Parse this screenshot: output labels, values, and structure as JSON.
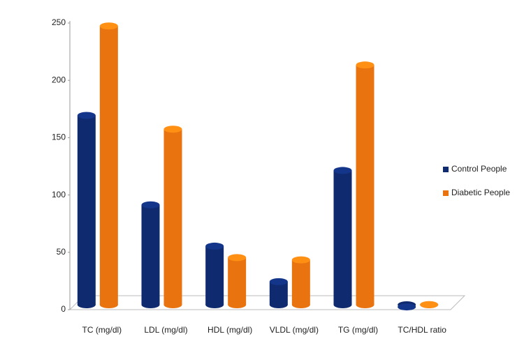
{
  "chart_data": {
    "type": "bar",
    "categories": [
      "TC (mg/dl)",
      "LDL (mg/dl)",
      "HDL (mg/dl)",
      "VLDL (mg/dl)",
      "TG (mg/dl)",
      "TC/HDL ratio"
    ],
    "series": [
      {
        "name": "Control People",
        "color": "#0f2a6e",
        "values": [
          170,
          92,
          56,
          25,
          122,
          3
        ]
      },
      {
        "name": "Diabetic People",
        "color": "#e8730f",
        "values": [
          248,
          158,
          46,
          44,
          214,
          5
        ]
      }
    ],
    "ylim": [
      0,
      250
    ],
    "yticks": [
      0,
      50,
      100,
      150,
      200,
      250
    ],
    "grid": false,
    "legend": "right"
  }
}
